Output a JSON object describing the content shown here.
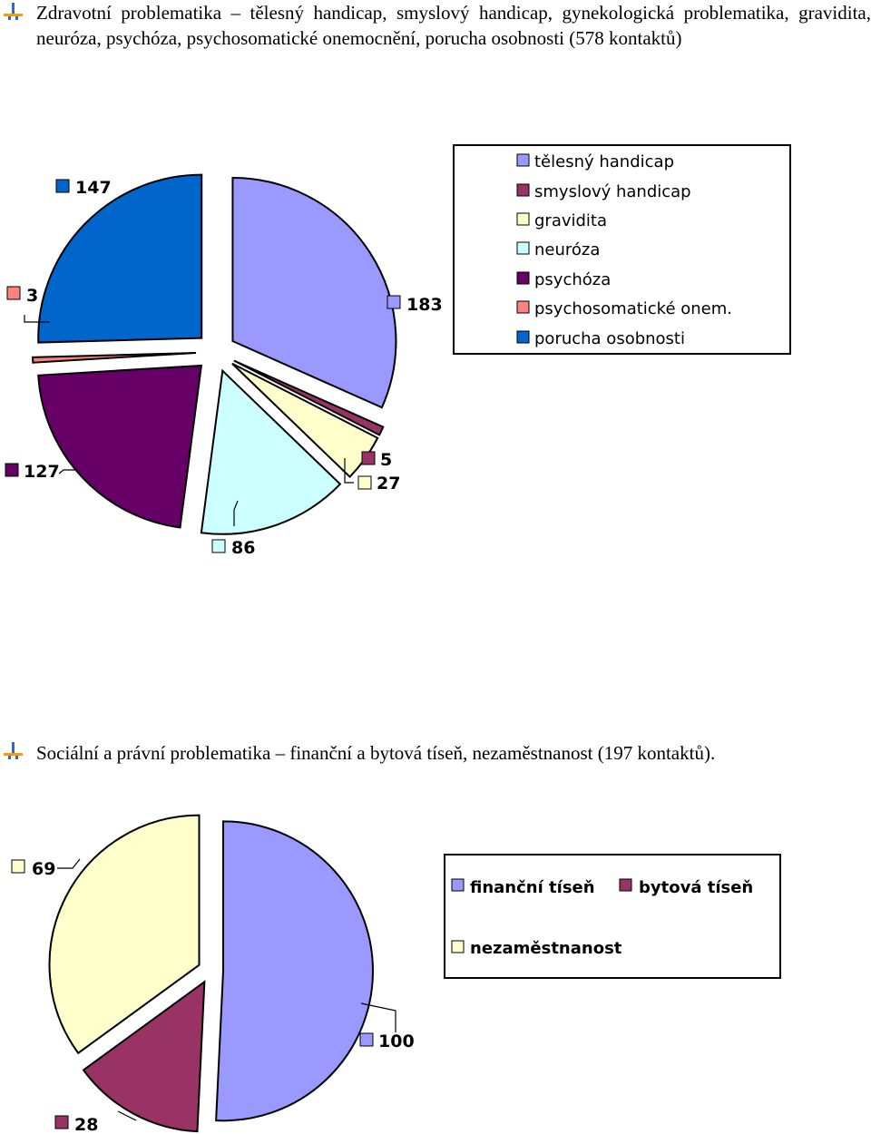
{
  "section1": {
    "heading": "Zdravotní problematika – tělesný handicap, smyslový handicap, gynekologická problematika, gravidita, neuróza, psychóza, psychosomatické onemocnění, porucha osobnosti (578 kontaktů)"
  },
  "section2": {
    "heading": "Sociální a právní problematika – finanční a bytová tíseň, nezaměstnanost (197 kontaktů)."
  },
  "chart_data": [
    {
      "type": "pie",
      "title": "",
      "categories": [
        "tělesný handicap",
        "smyslový handicap",
        "gravidita",
        "neuróza",
        "psychóza",
        "psychosomatické onem.",
        "porucha osobnosti"
      ],
      "values": [
        183,
        5,
        27,
        86,
        127,
        3,
        147
      ],
      "colors": [
        "#9999ff",
        "#993366",
        "#ffffcc",
        "#ccffff",
        "#660066",
        "#ff8080",
        "#0066cc"
      ],
      "legend": "right",
      "exploded": true,
      "labels": {
        "v0": "183",
        "v1": "5",
        "v2": "27",
        "v3": "86",
        "v4": "127",
        "v5": "3",
        "v6": "147"
      }
    },
    {
      "type": "pie",
      "title": "",
      "categories": [
        "finanční tíseň",
        "bytová tíseň",
        "nezaměstnanost"
      ],
      "values": [
        100,
        28,
        69
      ],
      "colors": [
        "#9999ff",
        "#993366",
        "#ffffcc"
      ],
      "legend": "right",
      "exploded": true,
      "labels": {
        "v0": "100",
        "v1": "28",
        "v2": "69"
      }
    }
  ]
}
